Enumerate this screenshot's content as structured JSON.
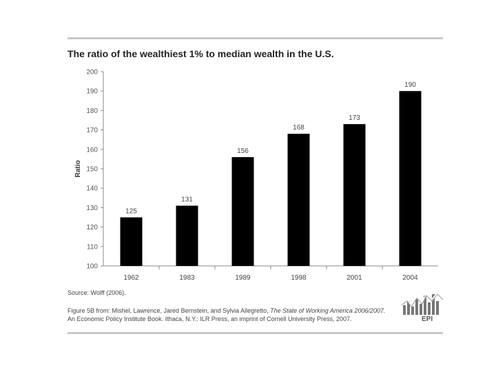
{
  "chart_data": {
    "type": "bar",
    "title": "The ratio of the wealthiest 1% to median wealth in the U.S.",
    "ylabel": "Ratio",
    "xlabel": "",
    "categories": [
      "1962",
      "1983",
      "1989",
      "1998",
      "2001",
      "2004"
    ],
    "values": [
      125,
      131,
      156,
      168,
      173,
      190
    ],
    "data_labels": [
      "125",
      "131",
      "156",
      "168",
      "173",
      "190"
    ],
    "ylim": [
      100,
      200
    ],
    "yticks": [
      "100",
      "110",
      "120",
      "130",
      "140",
      "150",
      "160",
      "170",
      "180",
      "190",
      "200"
    ],
    "bar_color": "#000000",
    "grid": false,
    "legend": "none"
  },
  "source": "Source: Wolff (2006).",
  "caption": {
    "prefix": "Figure 5B from: Mishel, Lawrence, Jared Bernstein, and Sylvia Allegretto,",
    "publication": "The State of Working America 2006/2007.",
    "line2": "An Economic Policy Institute Book. Ithaca, N.Y.: ILR Press, an imprint of Cornell University Press, 2007."
  },
  "logo": {
    "text": "EPI",
    "icon": "epi-bar-chart-logo"
  }
}
